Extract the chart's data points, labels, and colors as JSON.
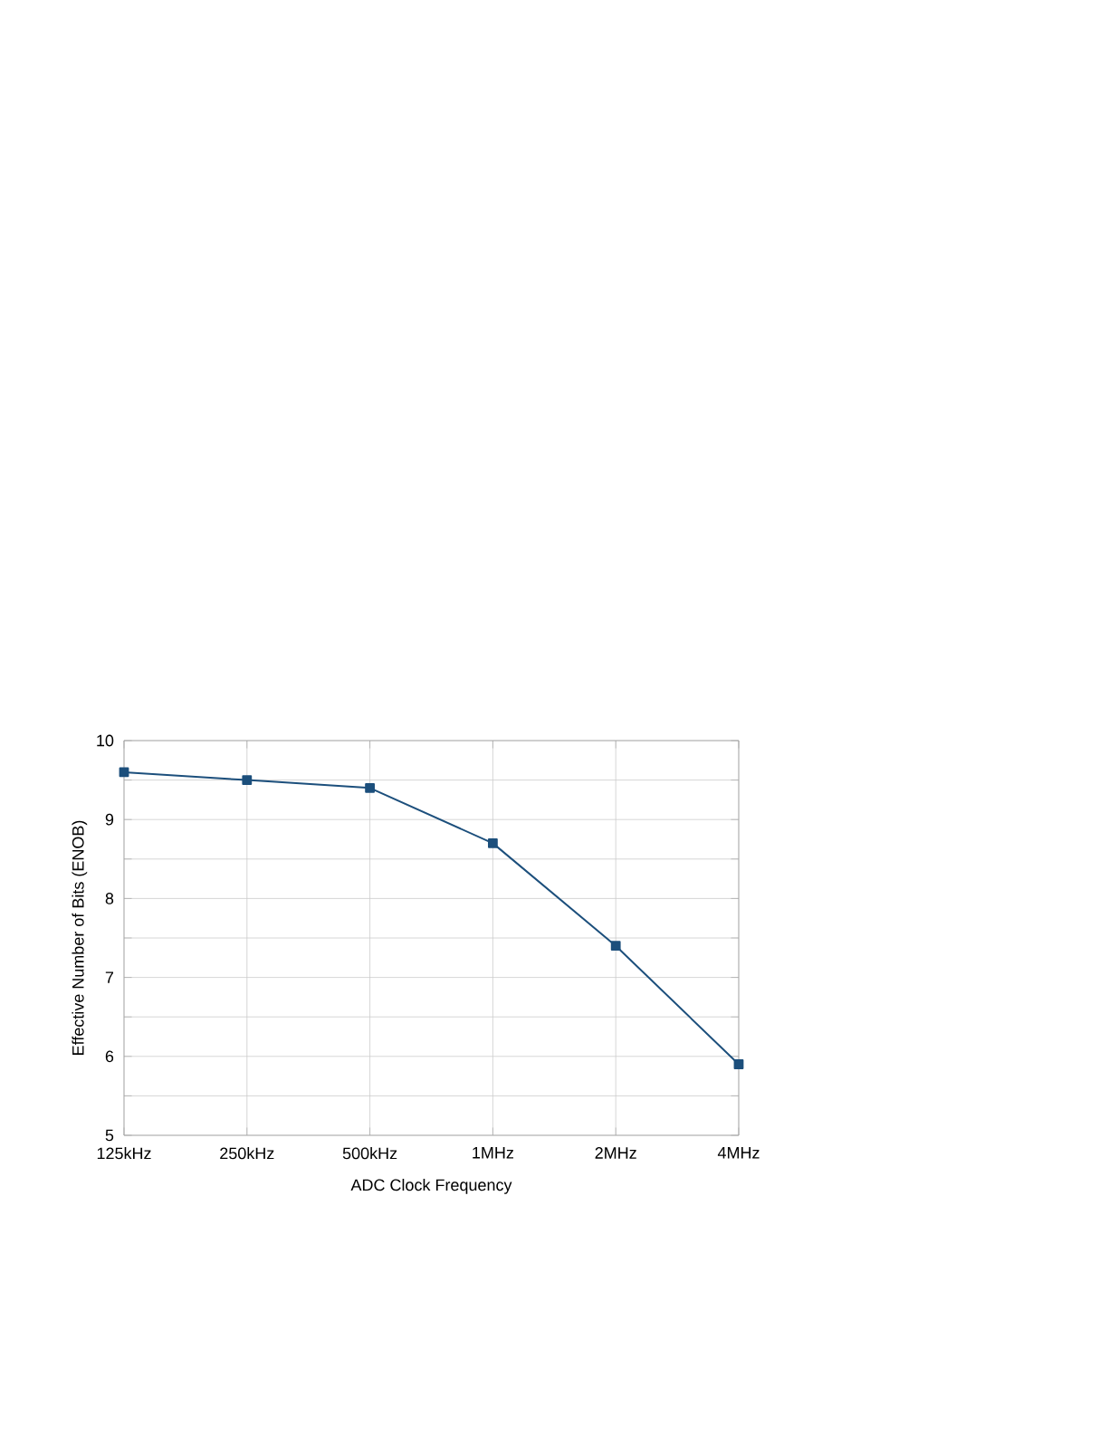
{
  "chart_data": {
    "type": "line",
    "xlabel": "ADC Clock Frequency",
    "ylabel": "Effective Number of Bits (ENOB)",
    "categories": [
      "125kHz",
      "250kHz",
      "500kHz",
      "1MHz",
      "2MHz",
      "4MHz"
    ],
    "series": [
      {
        "color": "#1c4f7c",
        "values": [
          9.6,
          9.5,
          9.4,
          8.7,
          7.4,
          5.9
        ]
      }
    ],
    "ylim": [
      5,
      10
    ],
    "yticks": [
      5,
      {
        "value": 5.5,
        "label": null
      },
      6,
      {
        "value": 6.5,
        "label": null
      },
      7,
      {
        "value": 7.5,
        "label": null
      },
      8,
      {
        "value": 8.5,
        "label": null
      },
      9,
      {
        "value": 9.5,
        "label": null
      },
      10
    ],
    "grid": true,
    "marker": "square",
    "line_style": "solid"
  }
}
